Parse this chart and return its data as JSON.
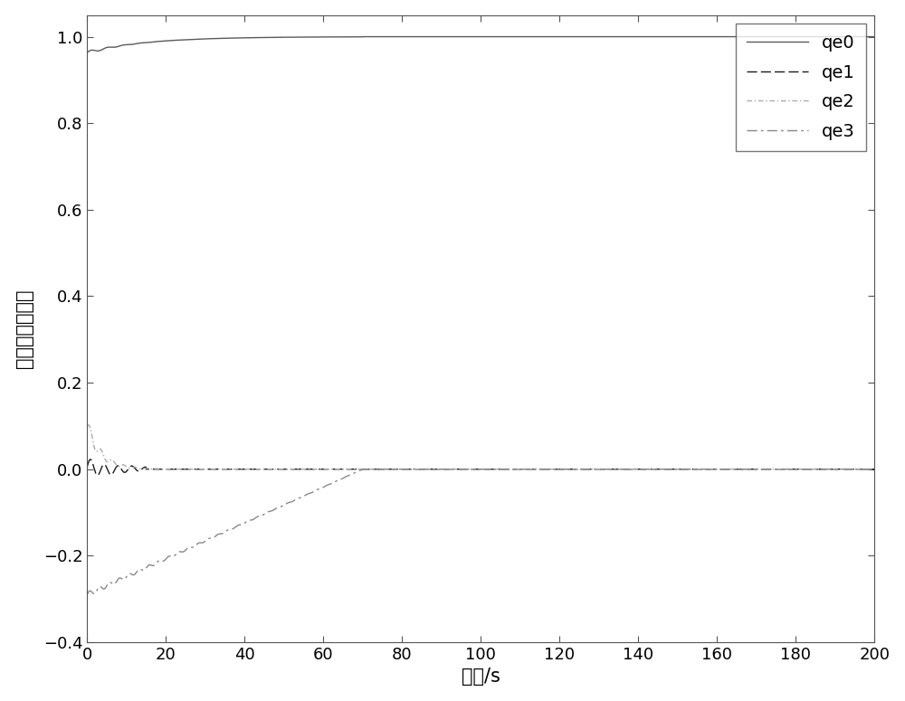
{
  "xlim": [
    0,
    200
  ],
  "ylim": [
    -0.4,
    1.05
  ],
  "xlabel": "时间/s",
  "ylabel": "误差姿态四元数",
  "yticks": [
    -0.4,
    -0.2,
    0.0,
    0.2,
    0.4,
    0.6,
    0.8,
    1.0
  ],
  "xticks": [
    0,
    20,
    40,
    60,
    80,
    100,
    120,
    140,
    160,
    180,
    200
  ],
  "legend_labels": [
    "qe0",
    "qe1",
    "qe2",
    "qe3"
  ],
  "qe0_color": "#5a5a5a",
  "qe1_color": "#1a1a1a",
  "qe2_color": "#aaaaaa",
  "qe3_color": "#888888",
  "background_color": "#ffffff",
  "figsize": [
    10.0,
    7.75
  ],
  "dpi": 100
}
